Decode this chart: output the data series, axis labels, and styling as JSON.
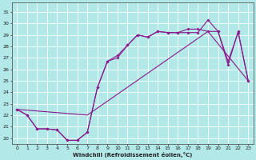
{
  "xlabel": "Windchill (Refroidissement éolien,°C)",
  "bg_color": "#b2e8e8",
  "grid_color": "#ffffff",
  "line_color": "#8b1a8b",
  "xlim": [
    -0.5,
    23.5
  ],
  "ylim": [
    19.5,
    31.8
  ],
  "ytick_labels": [
    "20",
    "21",
    "22",
    "23",
    "24",
    "25",
    "26",
    "27",
    "28",
    "29",
    "30",
    "31"
  ],
  "ytick_vals": [
    20,
    21,
    22,
    23,
    24,
    25,
    26,
    27,
    28,
    29,
    30,
    31
  ],
  "xtick_vals": [
    0,
    1,
    2,
    3,
    4,
    5,
    6,
    7,
    8,
    9,
    10,
    11,
    12,
    13,
    14,
    15,
    16,
    17,
    18,
    19,
    20,
    21,
    22,
    23
  ],
  "series1_x": [
    0,
    1,
    2,
    3,
    4,
    5,
    6,
    7,
    8,
    9,
    10,
    11,
    12,
    13,
    14,
    15,
    16,
    17,
    18,
    19,
    20,
    21,
    22,
    23
  ],
  "series1_y": [
    22.5,
    22.0,
    20.8,
    20.8,
    20.7,
    19.8,
    19.8,
    20.5,
    24.4,
    26.7,
    27.0,
    28.1,
    29.0,
    28.8,
    29.3,
    29.2,
    29.2,
    29.2,
    29.2,
    30.3,
    29.3,
    26.4,
    29.3,
    25.0
  ],
  "series2_x": [
    0,
    1,
    2,
    3,
    4,
    5,
    6,
    7,
    8,
    9,
    10,
    11,
    12,
    13,
    14,
    15,
    16,
    17,
    18,
    19,
    20,
    21,
    22,
    23
  ],
  "series2_y": [
    22.5,
    22.0,
    20.8,
    20.8,
    20.7,
    19.8,
    19.8,
    20.5,
    24.4,
    26.7,
    27.2,
    28.1,
    29.0,
    28.8,
    29.3,
    29.2,
    29.2,
    29.5,
    29.5,
    29.3,
    29.3,
    26.7,
    29.2,
    25.0
  ],
  "series3_x": [
    0,
    7,
    19,
    23
  ],
  "series3_y": [
    22.5,
    22.0,
    29.3,
    25.0
  ],
  "tick_fontsize": 4.5,
  "xlabel_fontsize": 5.0
}
